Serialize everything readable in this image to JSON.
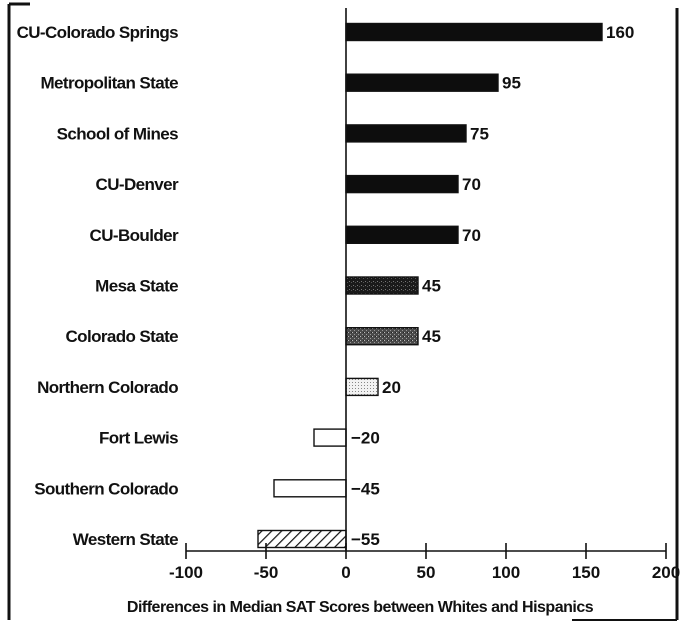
{
  "chart_data": {
    "type": "bar",
    "orientation": "horizontal",
    "categories": [
      "CU-Colorado Springs",
      "Metropolitan State",
      "School of Mines",
      "CU-Denver",
      "CU-Boulder",
      "Mesa State",
      "Colorado State",
      "Northern Colorado",
      "Fort Lewis",
      "Southern Colorado",
      "Western State"
    ],
    "values": [
      160,
      95,
      75,
      70,
      70,
      45,
      45,
      20,
      -20,
      -45,
      -55
    ],
    "value_labels": [
      "160",
      "95",
      "75",
      "70",
      "70",
      "45",
      "45",
      "20",
      "−20",
      "−45",
      "−55"
    ],
    "bar_styles": [
      "solid",
      "solid",
      "solid",
      "solid",
      "solid",
      "dark-speckled",
      "gray-speckled",
      "light-dotted",
      "white",
      "white",
      "hatched"
    ],
    "xlabel": "Differences in Median SAT Scores between Whites and Hispanics",
    "ylabel": "",
    "xlim": [
      -100,
      200
    ],
    "xticks": [
      -100,
      -50,
      0,
      50,
      100,
      150,
      200
    ],
    "xtick_labels": [
      "-100",
      "-50",
      "0",
      "50",
      "100",
      "150",
      "200"
    ],
    "grid": false,
    "legend": "none",
    "colors": {
      "bar_dark": "#0d0d0d",
      "bar_mid": "#3a3a3a",
      "bar_gray": "#6a6a6a",
      "bar_light": "#e6e6e6",
      "bar_white": "#ffffff",
      "axis": "#111111",
      "frame": "#111111"
    }
  }
}
